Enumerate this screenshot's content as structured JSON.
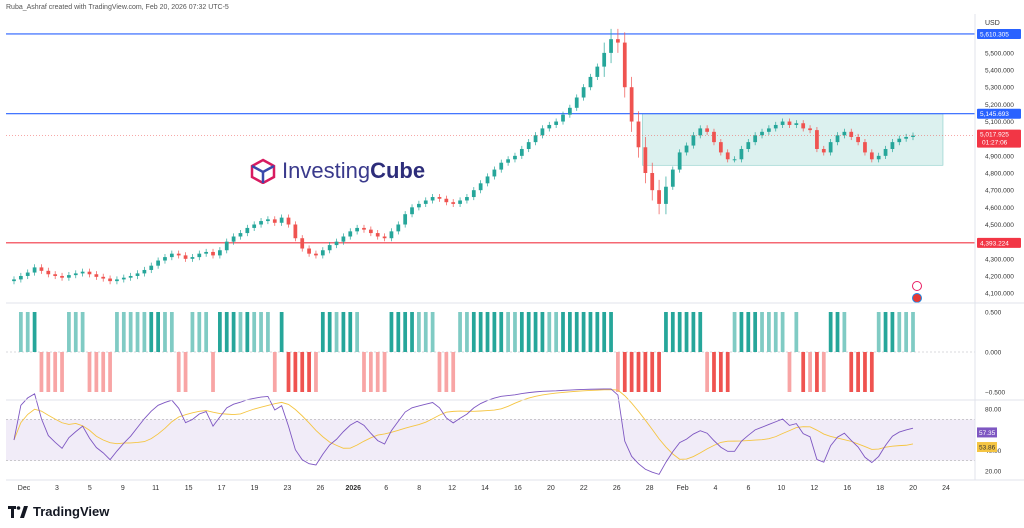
{
  "header": {
    "credit": "Ruba_Ashraf created with TradingView.com, Feb 20, 2026 07:32 UTC-5"
  },
  "watermark": {
    "brand_part1": "Investing",
    "brand_part2": "Cube",
    "icon": "cube-icon"
  },
  "footer": {
    "brand": "TradingView",
    "icon": "tradingview-logo-icon"
  },
  "currency": "USD",
  "colors": {
    "up": "#26a69a",
    "down": "#ef5350",
    "blue_line": "#2962ff",
    "red_line": "#f23645",
    "rsi": "#7e57c2",
    "rsi_ma": "#f5c542",
    "box": "#b2dfdb"
  },
  "chart_data": [
    {
      "type": "candlestick",
      "name": "Gold daily",
      "y_ticks": [
        "5,500.000",
        "5,400.000",
        "5,300.000",
        "5,200.000",
        "5,100.000",
        "4,900.000",
        "4,800.000",
        "4,700.000",
        "4,600.000",
        "4,500.000",
        "4,300.000",
        "4,200.000",
        "4,100.000"
      ],
      "ylim": [
        4060,
        5680
      ],
      "horizontal_lines": [
        {
          "value": 5610.305,
          "label": "5,610.305",
          "color": "#2962ff"
        },
        {
          "value": 5145.693,
          "label": "5,145.693",
          "color": "#2962ff"
        },
        {
          "value": 4393.224,
          "label": "4,393.224",
          "color": "#f23645"
        }
      ],
      "last_price": {
        "value": 5017.925,
        "label": "5,017.925",
        "countdown": "01:27:06"
      },
      "range_box": {
        "from": "Jan 30",
        "to": "Feb 21",
        "high": 5145,
        "low": 4845
      },
      "closes": [
        4180,
        4200,
        4220,
        4250,
        4230,
        4210,
        4200,
        4190,
        4205,
        4215,
        4225,
        4210,
        4195,
        4185,
        4170,
        4180,
        4190,
        4200,
        4215,
        4235,
        4260,
        4290,
        4310,
        4330,
        4320,
        4300,
        4310,
        4330,
        4340,
        4320,
        4350,
        4400,
        4430,
        4450,
        4480,
        4500,
        4520,
        4530,
        4510,
        4540,
        4500,
        4420,
        4360,
        4330,
        4320,
        4350,
        4380,
        4400,
        4430,
        4460,
        4480,
        4470,
        4450,
        4430,
        4420,
        4460,
        4500,
        4560,
        4600,
        4620,
        4640,
        4660,
        4650,
        4630,
        4620,
        4640,
        4660,
        4700,
        4740,
        4780,
        4820,
        4860,
        4880,
        4900,
        4940,
        4980,
        5020,
        5060,
        5080,
        5100,
        5140,
        5180,
        5240,
        5300,
        5360,
        5420,
        5500,
        5580,
        5560,
        5300,
        5100,
        4950,
        4800,
        4700,
        4620,
        4720,
        4820,
        4920,
        4960,
        5020,
        5060,
        5040,
        4980,
        4920,
        4880,
        4880,
        4940,
        4980,
        5020,
        5040,
        5060,
        5080,
        5100,
        5080,
        5090,
        5060,
        5050,
        4940,
        4920,
        4980,
        5020,
        5040,
        5010,
        4980,
        4920,
        4880,
        4900,
        4940,
        4980,
        5000,
        5010,
        5018
      ],
      "x_ticks": [
        {
          "label": "Dec",
          "bold": false
        },
        {
          "label": "3",
          "bold": false
        },
        {
          "label": "5",
          "bold": false
        },
        {
          "label": "9",
          "bold": false
        },
        {
          "label": "11",
          "bold": false
        },
        {
          "label": "15",
          "bold": false
        },
        {
          "label": "17",
          "bold": false
        },
        {
          "label": "19",
          "bold": false
        },
        {
          "label": "23",
          "bold": false
        },
        {
          "label": "26",
          "bold": false
        },
        {
          "label": "2026",
          "bold": true
        },
        {
          "label": "6",
          "bold": false
        },
        {
          "label": "8",
          "bold": false
        },
        {
          "label": "12",
          "bold": false
        },
        {
          "label": "14",
          "bold": false
        },
        {
          "label": "16",
          "bold": false
        },
        {
          "label": "20",
          "bold": false
        },
        {
          "label": "22",
          "bold": false
        },
        {
          "label": "26",
          "bold": false
        },
        {
          "label": "28",
          "bold": false
        },
        {
          "label": "Feb",
          "bold": false
        },
        {
          "label": "4",
          "bold": false
        },
        {
          "label": "6",
          "bold": false
        },
        {
          "label": "10",
          "bold": false
        },
        {
          "label": "12",
          "bold": false
        },
        {
          "label": "16",
          "bold": false
        },
        {
          "label": "18",
          "bold": false
        },
        {
          "label": "20",
          "bold": false
        },
        {
          "label": "24",
          "bold": false
        }
      ]
    },
    {
      "type": "bar",
      "name": "Oscillator histogram",
      "y_ticks": [
        "0.500",
        "0.000",
        "−0.500"
      ],
      "ylim": [
        -0.55,
        0.55
      ]
    },
    {
      "type": "line",
      "name": "RSI",
      "y_ticks": [
        "80.00",
        "40.00",
        "20.00"
      ],
      "ylim": [
        15,
        85
      ],
      "bands": [
        70,
        30
      ],
      "rsi_value": "57.35",
      "ma_value": "53.86"
    }
  ]
}
